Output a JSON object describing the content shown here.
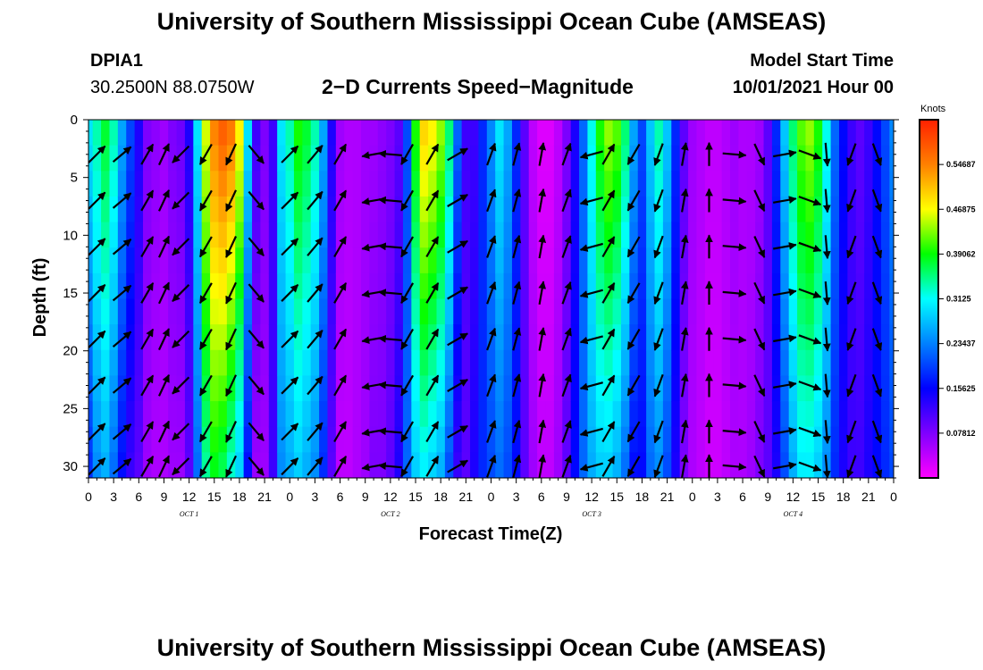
{
  "header": {
    "title": "University of Southern Mississippi Ocean Cube (AMSEAS)",
    "station_id": "DPIA1",
    "station_coords": "30.2500N  88.0750W",
    "subtitle": "2−D Currents Speed−Magnitude",
    "model_start_label": "Model Start Time",
    "model_start_value": "10/01/2021 Hour 00"
  },
  "footer": {
    "title": "University of Southern Mississippi Ocean Cube (AMSEAS)"
  },
  "colors": {
    "magenta": "#ff00ff",
    "violet": "#7f00ff",
    "blue": "#0000ff",
    "azure": "#0080ff",
    "cyan": "#00ffff",
    "green": "#00ff00",
    "yellow": "#ffff00",
    "orange": "#ff8000",
    "red": "#ff2000"
  },
  "chart_data": {
    "type": "heatmap",
    "title": "2-D Currents Speed-Magnitude",
    "xlabel": "Forecast Time(Z)",
    "ylabel": "Depth (ft)",
    "x_tick_labels": [
      "0",
      "3",
      "6",
      "9",
      "12",
      "15",
      "18",
      "21",
      "0",
      "3",
      "6",
      "9",
      "12",
      "15",
      "18",
      "21",
      "0",
      "3",
      "6",
      "9",
      "12",
      "15",
      "18",
      "21",
      "0",
      "3",
      "6",
      "9",
      "12",
      "15",
      "18",
      "21",
      "0"
    ],
    "day_labels": [
      "OCT  1",
      "OCT  2",
      "OCT  3",
      "OCT  4"
    ],
    "x_range_hours": [
      0,
      96
    ],
    "y_ticks": [
      "0",
      "5",
      "10",
      "15",
      "20",
      "25",
      "30"
    ],
    "y_range_ft": [
      0,
      31
    ],
    "colorbar": {
      "unit": "Knots",
      "range": [
        0,
        0.625
      ],
      "tick_labels": [
        "0.54687",
        "0.46875",
        "0.39062",
        "0.3125",
        "0.23437",
        "0.15625",
        "0.07812"
      ],
      "tick_values": [
        0.54687,
        0.46875,
        0.39062,
        0.3125,
        0.23437,
        0.15625,
        0.07812
      ]
    },
    "speed_profile": {
      "hours": [
        0,
        1,
        2,
        3,
        4,
        5,
        6,
        7,
        8,
        9,
        10,
        11,
        12,
        13,
        14,
        15,
        16,
        17,
        18,
        19,
        20,
        21,
        22,
        23,
        24,
        25,
        26,
        27,
        28,
        29,
        30,
        31,
        32,
        33,
        34,
        35,
        36,
        37,
        38,
        39,
        40,
        41,
        42,
        43,
        44,
        45,
        46,
        47,
        48,
        49,
        50,
        51,
        52,
        53,
        54,
        55,
        56,
        57,
        58,
        59,
        60,
        61,
        62,
        63,
        64,
        65,
        66,
        67,
        68,
        69,
        70,
        71,
        72,
        73,
        74,
        75,
        76,
        77,
        78,
        79,
        80,
        81,
        82,
        83,
        84,
        85,
        86,
        87,
        88,
        89,
        90,
        91,
        92,
        93,
        94,
        95,
        96
      ],
      "surface_knots": [
        0.3,
        0.34,
        0.38,
        0.34,
        0.26,
        0.2,
        0.14,
        0.08,
        0.07,
        0.06,
        0.08,
        0.09,
        0.14,
        0.3,
        0.46,
        0.55,
        0.58,
        0.56,
        0.48,
        0.3,
        0.12,
        0.08,
        0.12,
        0.3,
        0.34,
        0.4,
        0.38,
        0.34,
        0.26,
        0.14,
        0.06,
        0.05,
        0.05,
        0.06,
        0.06,
        0.07,
        0.08,
        0.1,
        0.2,
        0.4,
        0.5,
        0.48,
        0.44,
        0.36,
        0.22,
        0.12,
        0.12,
        0.18,
        0.24,
        0.3,
        0.26,
        0.18,
        0.1,
        0.04,
        0.02,
        0.02,
        0.04,
        0.08,
        0.14,
        0.22,
        0.32,
        0.4,
        0.44,
        0.42,
        0.36,
        0.26,
        0.2,
        0.28,
        0.34,
        0.28,
        0.18,
        0.1,
        0.06,
        0.05,
        0.04,
        0.04,
        0.05,
        0.06,
        0.05,
        0.05,
        0.06,
        0.1,
        0.18,
        0.28,
        0.36,
        0.42,
        0.44,
        0.4,
        0.32,
        0.22,
        0.16,
        0.12,
        0.1,
        0.12,
        0.16,
        0.2,
        0.24
      ],
      "bottom_knots": [
        0.18,
        0.24,
        0.26,
        0.22,
        0.16,
        0.12,
        0.1,
        0.06,
        0.05,
        0.05,
        0.06,
        0.06,
        0.1,
        0.22,
        0.34,
        0.38,
        0.36,
        0.32,
        0.28,
        0.16,
        0.06,
        0.06,
        0.12,
        0.24,
        0.26,
        0.28,
        0.26,
        0.24,
        0.18,
        0.1,
        0.04,
        0.04,
        0.05,
        0.06,
        0.08,
        0.08,
        0.1,
        0.14,
        0.22,
        0.28,
        0.3,
        0.28,
        0.26,
        0.2,
        0.12,
        0.1,
        0.14,
        0.18,
        0.2,
        0.22,
        0.2,
        0.16,
        0.1,
        0.06,
        0.04,
        0.04,
        0.06,
        0.1,
        0.16,
        0.22,
        0.26,
        0.28,
        0.28,
        0.26,
        0.22,
        0.16,
        0.16,
        0.22,
        0.24,
        0.2,
        0.14,
        0.08,
        0.05,
        0.04,
        0.03,
        0.03,
        0.04,
        0.05,
        0.05,
        0.06,
        0.08,
        0.1,
        0.14,
        0.2,
        0.26,
        0.3,
        0.3,
        0.28,
        0.24,
        0.18,
        0.14,
        0.12,
        0.12,
        0.14,
        0.16,
        0.18,
        0.2
      ]
    },
    "vector_columns": {
      "hours": [
        1,
        4,
        7,
        9,
        11,
        14,
        17,
        20,
        24,
        27,
        30,
        34,
        36,
        38,
        41,
        44,
        48,
        51,
        54,
        57,
        60,
        62,
        65,
        68,
        71,
        74,
        77,
        80,
        83,
        86,
        88,
        91,
        94
      ],
      "depths_ft": [
        3,
        7,
        11,
        15,
        19,
        23,
        27,
        30
      ],
      "direction_deg": [
        45,
        50,
        30,
        25,
        225,
        210,
        205,
        140,
        45,
        40,
        30,
        260,
        275,
        210,
        30,
        60,
        20,
        15,
        10,
        20,
        255,
        30,
        210,
        200,
        10,
        0,
        95,
        155,
        80,
        110,
        175,
        200,
        160
      ]
    }
  }
}
